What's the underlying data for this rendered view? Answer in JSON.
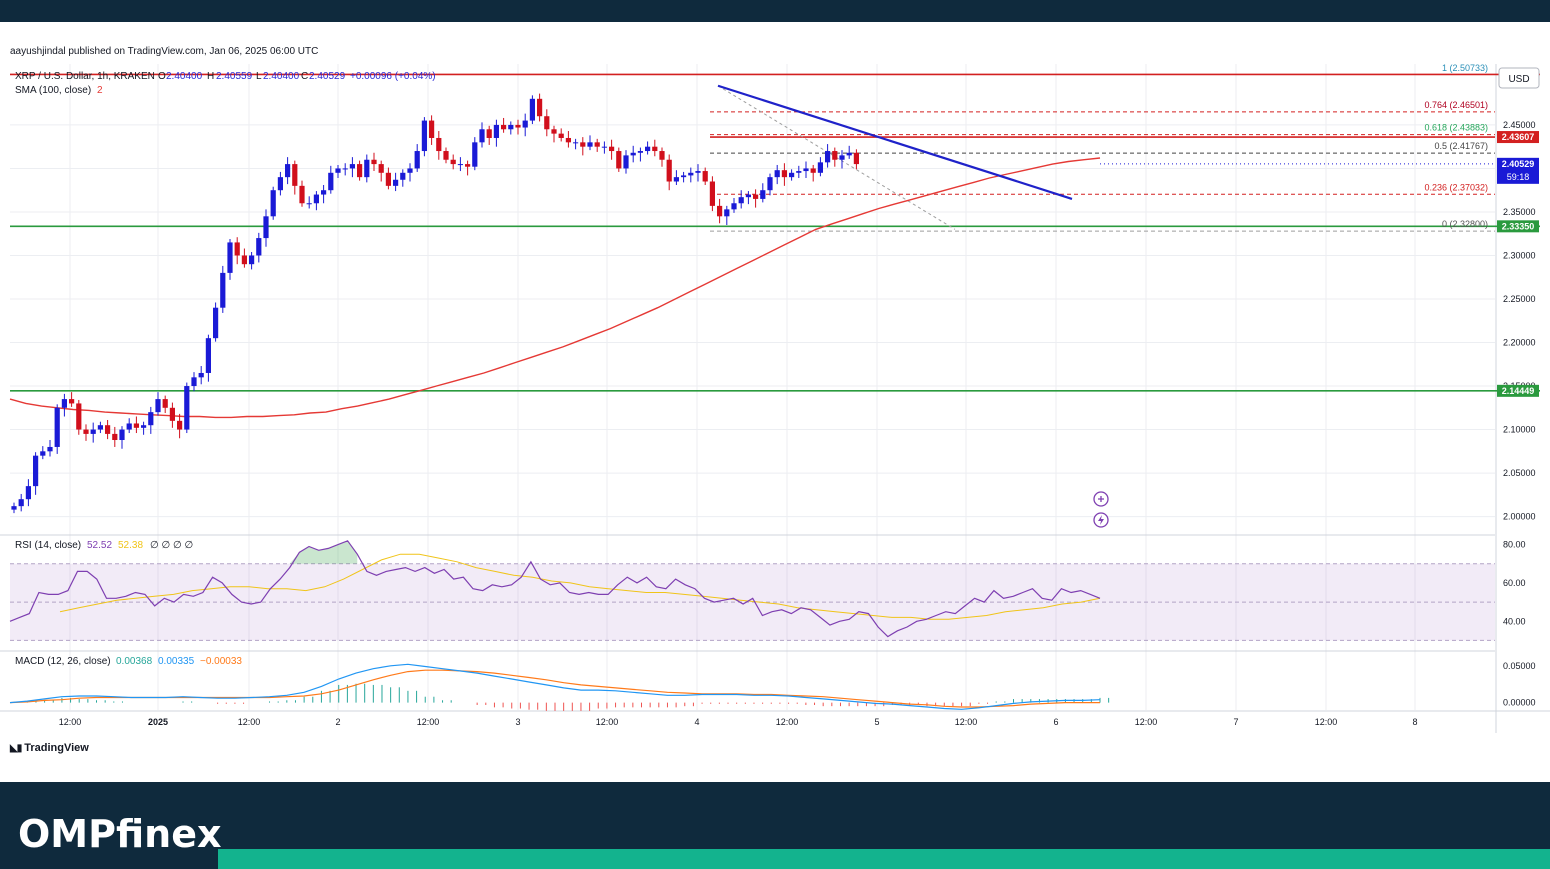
{
  "header": {
    "published": "aayushjindal published on TradingView.com, Jan 06, 2025 06:00 UTC"
  },
  "footer": {
    "brand": "OMPfinex",
    "tradingview_logo": "TradingView"
  },
  "colors": {
    "bull": "#1a1ad6",
    "bear": "#d10f1c",
    "sma": "#e53935",
    "trend": "#1f22c9",
    "support": "#2a9a3e",
    "resistance": "#d32020",
    "fib": "#d32020",
    "rsi": "#7e3fb1",
    "rsi_ma": "#f0c419",
    "macd": "#2196f3",
    "signal": "#ff7a1a"
  },
  "legend": {
    "symbol": "XRP / U.S. Dollar, 1h, KRAKEN",
    "o_label": "O",
    "o": "2.40400",
    "h_label": "H",
    "h": "2.40559",
    "l_label": "L",
    "l": "2.40400",
    "c_label": "C",
    "c": "2.40529",
    "change": "+0.00096 (+0.04%)",
    "sma_label": "SMA (100, close)",
    "sma_value": "2",
    "currency": "USD"
  },
  "price_badges": {
    "resistance": "2.43607",
    "current": "2.40529",
    "countdown": "59:18",
    "support_upper": "2.33350",
    "support_lower": "2.14449"
  },
  "fib_labels": [
    "1 (2.50733)",
    "0.764 (2.46501)",
    "0.618 (2.43883)",
    "0.5 (2.41767)",
    "0.236 (2.37032)",
    "0 (2.32800)"
  ],
  "rsi_panel": {
    "label": "RSI (14, close)",
    "value": "52.52",
    "ma_value": "52.38",
    "extras": "∅ ∅ ∅ ∅"
  },
  "macd_panel": {
    "label": "MACD (12, 26, close)",
    "hist": "0.00368",
    "macd": "0.00335",
    "signal": "−0.00033"
  },
  "chart_data": {
    "type": "candlestick",
    "symbol": "XRP / U.S. Dollar",
    "interval": "1h",
    "exchange": "KRAKEN",
    "x_ticks": [
      "12:00",
      "2025",
      "12:00",
      "2",
      "12:00",
      "3",
      "12:00",
      "4",
      "12:00",
      "5",
      "12:00",
      "6",
      "12:00",
      "7",
      "12:00",
      "8"
    ],
    "y_ticks": [
      "2.45000",
      "2.40000",
      "2.35000",
      "2.30000",
      "2.25000",
      "2.20000",
      "2.15000",
      "2.10000",
      "2.05000",
      "2.00000"
    ],
    "ylim": [
      1.98,
      2.52
    ],
    "closes": [
      2.012,
      2.02,
      2.035,
      2.07,
      2.075,
      2.08,
      2.125,
      2.135,
      2.13,
      2.1,
      2.095,
      2.1,
      2.105,
      2.095,
      2.088,
      2.1,
      2.107,
      2.102,
      2.105,
      2.12,
      2.135,
      2.125,
      2.11,
      2.1,
      2.15,
      2.16,
      2.165,
      2.205,
      2.24,
      2.28,
      2.315,
      2.3,
      2.29,
      2.3,
      2.32,
      2.345,
      2.375,
      2.39,
      2.405,
      2.38,
      2.36,
      2.36,
      2.37,
      2.375,
      2.395,
      2.4,
      2.4,
      2.405,
      2.39,
      2.41,
      2.405,
      2.395,
      2.38,
      2.387,
      2.395,
      2.4,
      2.42,
      2.455,
      2.435,
      2.42,
      2.41,
      2.405,
      2.405,
      2.402,
      2.43,
      2.445,
      2.435,
      2.45,
      2.445,
      2.45,
      2.447,
      2.455,
      2.48,
      2.46,
      2.445,
      2.44,
      2.435,
      2.43,
      2.43,
      2.425,
      2.43,
      2.425,
      2.425,
      2.42,
      2.4,
      2.415,
      2.418,
      2.42,
      2.425,
      2.42,
      2.41,
      2.385,
      2.39,
      2.392,
      2.395,
      2.397,
      2.385,
      2.357,
      2.345,
      2.353,
      2.36,
      2.367,
      2.37,
      2.365,
      2.375,
      2.39,
      2.398,
      2.39,
      2.395,
      2.397,
      2.4,
      2.395,
      2.407,
      2.42,
      2.41,
      2.415,
      2.418,
      2.405
    ],
    "sma_100": [
      2.135,
      2.13,
      2.127,
      2.125,
      2.123,
      2.122,
      2.12,
      2.119,
      2.118,
      2.117,
      2.116,
      2.115,
      2.115,
      2.114,
      2.114,
      2.115,
      2.115,
      2.116,
      2.117,
      2.119,
      2.12,
      2.124,
      2.127,
      2.131,
      2.135,
      2.14,
      2.145,
      2.15,
      2.155,
      2.16,
      2.165,
      2.171,
      2.177,
      2.183,
      2.189,
      2.195,
      2.202,
      2.209,
      2.216,
      2.224,
      2.232,
      2.24,
      2.249,
      2.258,
      2.267,
      2.276,
      2.285,
      2.294,
      2.303,
      2.312,
      2.321,
      2.33,
      2.336,
      2.342,
      2.348,
      2.354,
      2.359,
      2.364,
      2.369,
      2.374,
      2.379,
      2.384,
      2.389,
      2.393,
      2.397,
      2.401,
      2.405,
      2.408,
      2.41,
      2.412
    ],
    "resistance_level": 2.43607,
    "resistance_top": 2.508,
    "support_levels": [
      2.3335,
      2.14449
    ],
    "trendline": {
      "from_bar": 82,
      "from_price": 2.495,
      "to_bar": 124,
      "to_price": 2.365
    },
    "fib_levels": [
      {
        "ratio": 1,
        "price": 2.50733
      },
      {
        "ratio": 0.764,
        "price": 2.46501
      },
      {
        "ratio": 0.618,
        "price": 2.43883
      },
      {
        "ratio": 0.5,
        "price": 2.41767
      },
      {
        "ratio": 0.236,
        "price": 2.37032
      },
      {
        "ratio": 0,
        "price": 2.328
      }
    ],
    "rsi": {
      "y_ticks": [
        "80.00",
        "60.00",
        "40.00"
      ],
      "ylim": [
        25,
        85
      ],
      "overbought": 70,
      "oversold": 30,
      "values": [
        40,
        42,
        44,
        55,
        54,
        54,
        56,
        66,
        66,
        62,
        52,
        52,
        53,
        55,
        54,
        48,
        52,
        50,
        54,
        53,
        55,
        63,
        60,
        54,
        50,
        49,
        50,
        57,
        62,
        68,
        76,
        79,
        77,
        78,
        80,
        82,
        75,
        66,
        64,
        66,
        67,
        68,
        66,
        68,
        65,
        67,
        62,
        63,
        57,
        56,
        59,
        58,
        59,
        63,
        71,
        62,
        59,
        60,
        55,
        54,
        55,
        54,
        54,
        59,
        63,
        60,
        63,
        58,
        57,
        62,
        59,
        57,
        52,
        50,
        51,
        52,
        49,
        52,
        43,
        45,
        46,
        44,
        47,
        46,
        42,
        38,
        40,
        41,
        45,
        44,
        37,
        32,
        35,
        37,
        40,
        41,
        43,
        45,
        44,
        48,
        52,
        50,
        56,
        52,
        53,
        55,
        57,
        52,
        51,
        57,
        55,
        56,
        54,
        52
      ],
      "ma_values": [
        45,
        47,
        49,
        51,
        52,
        53,
        54,
        56,
        57,
        58,
        58,
        57,
        57,
        56,
        58,
        62,
        67,
        72,
        75,
        75,
        73,
        71,
        68,
        66,
        64,
        63,
        61,
        60,
        58,
        57,
        56,
        55,
        55,
        54,
        53,
        52,
        51,
        50,
        49,
        47,
        46,
        45,
        44,
        43,
        42,
        42,
        41,
        41,
        42,
        43,
        45,
        46,
        47,
        49,
        50,
        52
      ]
    },
    "macd": {
      "y_ticks": [
        "0.05000",
        "0.00000"
      ],
      "ylim": [
        -0.01,
        0.07
      ],
      "macd": [
        0.0,
        0.002,
        0.005,
        0.008,
        0.009,
        0.009,
        0.008,
        0.007,
        0.007,
        0.007,
        0.008,
        0.007,
        0.006,
        0.006,
        0.007,
        0.008,
        0.01,
        0.014,
        0.022,
        0.032,
        0.04,
        0.046,
        0.05,
        0.052,
        0.049,
        0.046,
        0.043,
        0.04,
        0.036,
        0.032,
        0.028,
        0.024,
        0.02,
        0.017,
        0.017,
        0.016,
        0.014,
        0.012,
        0.01,
        0.01,
        0.011,
        0.011,
        0.011,
        0.01,
        0.01,
        0.009,
        0.007,
        0.005,
        0.003,
        0.001,
        -0.001,
        -0.002,
        -0.004,
        -0.006,
        -0.008,
        -0.009,
        -0.007,
        -0.004,
        -0.001,
        0.001,
        0.002,
        0.003,
        0.003,
        0.004
      ],
      "signal": [
        0.0,
        0.001,
        0.003,
        0.004,
        0.006,
        0.007,
        0.007,
        0.007,
        0.007,
        0.007,
        0.007,
        0.007,
        0.007,
        0.007,
        0.007,
        0.007,
        0.008,
        0.009,
        0.012,
        0.017,
        0.024,
        0.031,
        0.037,
        0.042,
        0.044,
        0.044,
        0.043,
        0.042,
        0.04,
        0.037,
        0.034,
        0.031,
        0.027,
        0.024,
        0.022,
        0.02,
        0.018,
        0.016,
        0.014,
        0.013,
        0.012,
        0.012,
        0.012,
        0.011,
        0.011,
        0.01,
        0.009,
        0.008,
        0.006,
        0.004,
        0.002,
        0.0,
        -0.002,
        -0.003,
        -0.005,
        -0.006,
        -0.006,
        -0.005,
        -0.004,
        -0.002,
        -0.001,
        0.0,
        0.0,
        0.0
      ]
    }
  }
}
